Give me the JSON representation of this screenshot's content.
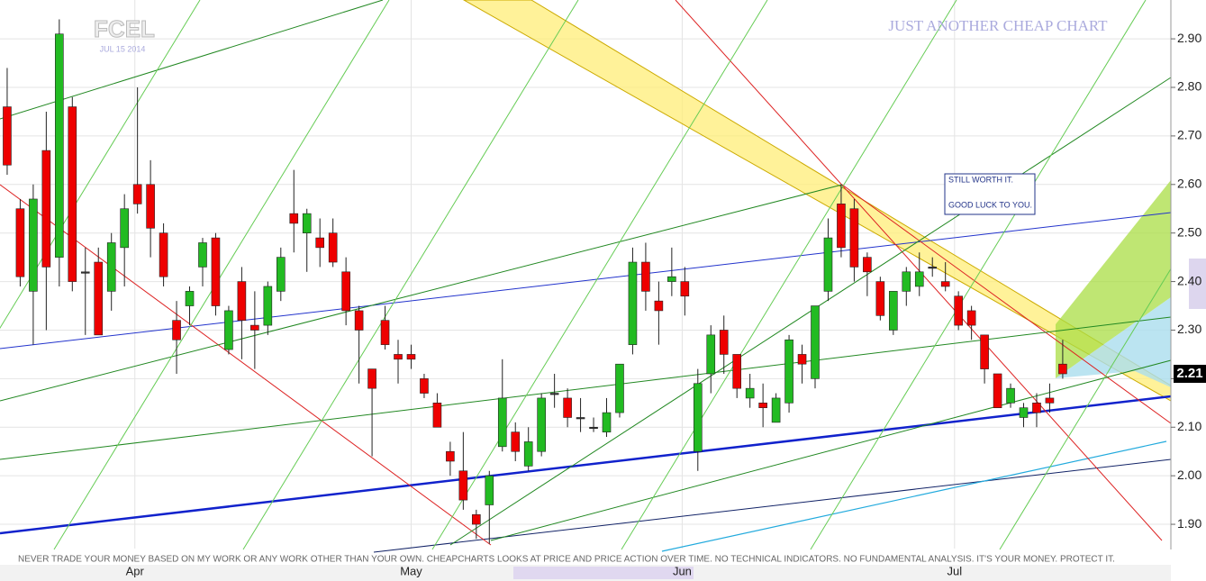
{
  "chart_data": {
    "type": "candlestick",
    "title": "FCEL",
    "subtitle": "JUL 15 2014",
    "banner": "JUST ANOTHER CHEAP CHART",
    "annotations": [
      "STILL WORTH IT.",
      "GOOD LUCK TO YOU."
    ],
    "footer": "NEVER TRADE YOUR MONEY BASED ON MY  WORK OR ANY WORK OTHER THAN YOUR  OWN. CHEAPCHARTS LOOKS AT PRICE AND  PRICE ACTION OVER TIME. NO TECHNICAL  INDICATORS. NO FUNDAMENTAL ANALYSIS. IT'S  YOUR MONEY. PROTECT IT.",
    "up_color": "#22bb22",
    "down_color": "#ee0000",
    "open": [
      2.76,
      2.55,
      2.38,
      2.67,
      2.45,
      2.76,
      2.42,
      2.44,
      2.38,
      2.47,
      2.6,
      2.6,
      2.5,
      2.32,
      2.35,
      2.43,
      2.49,
      2.26,
      2.4,
      2.31,
      2.31,
      2.38,
      2.54,
      2.5,
      2.49,
      2.5,
      2.42,
      2.34,
      2.22,
      2.32,
      2.25,
      2.25,
      2.2,
      2.15,
      2.05,
      2.01,
      1.92,
      1.94,
      2.06,
      2.09,
      2.02,
      2.05,
      2.17,
      2.16,
      2.12,
      2.1,
      2.09,
      2.13,
      2.27,
      2.44,
      2.36,
      2.4,
      2.4,
      2.05,
      2.21,
      2.3,
      2.25,
      2.16,
      2.15,
      2.11,
      2.15,
      2.25,
      2.2,
      2.38,
      2.56,
      2.55,
      2.45,
      2.4,
      2.3,
      2.38,
      2.39,
      2.43,
      2.4,
      2.37,
      2.34,
      2.29,
      2.21,
      2.15,
      2.12,
      2.15,
      2.16,
      2.23
    ],
    "high": [
      2.84,
      2.57,
      2.6,
      2.75,
      2.94,
      2.78,
      2.47,
      2.47,
      2.5,
      2.58,
      2.8,
      2.65,
      2.52,
      2.36,
      2.39,
      2.49,
      2.5,
      2.35,
      2.43,
      2.38,
      2.4,
      2.47,
      2.63,
      2.55,
      2.53,
      2.53,
      2.45,
      2.35,
      2.22,
      2.35,
      2.28,
      2.27,
      2.21,
      2.17,
      2.07,
      2.09,
      1.93,
      2.01,
      2.24,
      2.11,
      2.1,
      2.17,
      2.21,
      2.18,
      2.16,
      2.12,
      2.16,
      2.23,
      2.47,
      2.48,
      2.4,
      2.47,
      2.43,
      2.22,
      2.31,
      2.33,
      2.25,
      2.21,
      2.19,
      2.17,
      2.29,
      2.27,
      2.35,
      2.53,
      2.6,
      2.57,
      2.46,
      2.41,
      2.38,
      2.43,
      2.46,
      2.45,
      2.44,
      2.38,
      2.35,
      2.29,
      2.21,
      2.19,
      2.15,
      2.17,
      2.19,
      2.28
    ],
    "low": [
      2.62,
      2.39,
      2.27,
      2.3,
      2.39,
      2.38,
      2.29,
      2.29,
      2.34,
      2.39,
      2.54,
      2.45,
      2.39,
      2.21,
      2.31,
      2.39,
      2.33,
      2.25,
      2.24,
      2.22,
      2.29,
      2.36,
      2.46,
      2.42,
      2.43,
      2.43,
      2.31,
      2.19,
      2.04,
      2.26,
      2.19,
      2.22,
      2.16,
      2.1,
      2.0,
      1.93,
      1.87,
      1.86,
      2.05,
      2.03,
      2.01,
      2.04,
      2.14,
      2.1,
      2.09,
      2.09,
      2.08,
      2.12,
      2.25,
      2.34,
      2.27,
      2.37,
      2.33,
      2.01,
      2.17,
      2.21,
      2.16,
      2.14,
      2.1,
      2.11,
      2.13,
      2.19,
      2.18,
      2.36,
      2.45,
      2.4,
      2.37,
      2.32,
      2.29,
      2.35,
      2.37,
      2.41,
      2.38,
      2.3,
      2.28,
      2.19,
      2.14,
      2.14,
      2.1,
      2.1,
      2.13,
      2.2
    ],
    "close": [
      2.64,
      2.41,
      2.57,
      2.43,
      2.91,
      2.4,
      2.42,
      2.29,
      2.48,
      2.55,
      2.56,
      2.51,
      2.41,
      2.28,
      2.38,
      2.48,
      2.35,
      2.34,
      2.32,
      2.3,
      2.39,
      2.45,
      2.52,
      2.54,
      2.47,
      2.44,
      2.34,
      2.3,
      2.18,
      2.27,
      2.24,
      2.24,
      2.17,
      2.1,
      2.03,
      1.95,
      1.9,
      2.0,
      2.16,
      2.05,
      2.07,
      2.16,
      2.17,
      2.12,
      2.12,
      2.1,
      2.13,
      2.23,
      2.44,
      2.38,
      2.34,
      2.41,
      2.37,
      2.19,
      2.29,
      2.25,
      2.18,
      2.18,
      2.14,
      2.16,
      2.28,
      2.23,
      2.35,
      2.49,
      2.47,
      2.43,
      2.42,
      2.33,
      2.38,
      2.42,
      2.42,
      2.43,
      2.39,
      2.31,
      2.31,
      2.22,
      2.14,
      2.18,
      2.14,
      2.13,
      2.15,
      2.21
    ],
    "xlim": [
      -0.55,
      89.3
    ],
    "xticks": [
      {
        "value": 9.8,
        "label": "Apr"
      },
      {
        "value": 31,
        "label": "May"
      },
      {
        "value": 51.8,
        "label": "Jun"
      },
      {
        "value": 72.7,
        "label": "Jul"
      }
    ],
    "ylim": [
      1.85,
      2.98
    ],
    "yticks": [
      {
        "value": 1.9,
        "label": "1.90"
      },
      {
        "value": 2.0,
        "label": "2.00"
      },
      {
        "value": 2.1,
        "label": "2.10"
      },
      {
        "value": 2.2,
        "label": "2.20"
      },
      {
        "value": 2.3,
        "label": "2.30"
      },
      {
        "value": 2.4,
        "label": "2.40"
      },
      {
        "value": 2.5,
        "label": "2.50"
      },
      {
        "value": 2.6,
        "label": "2.60"
      },
      {
        "value": 2.7,
        "label": "2.70"
      },
      {
        "value": 2.8,
        "label": "2.80"
      },
      {
        "value": 2.9,
        "label": "2.90"
      }
    ],
    "last_price": {
      "value": 2.21,
      "label": "2.21"
    },
    "grid": true
  }
}
